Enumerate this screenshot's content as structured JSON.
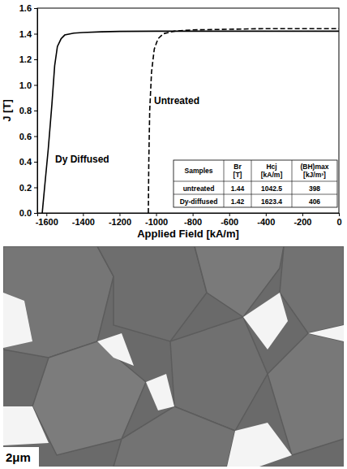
{
  "chart_data": {
    "type": "line",
    "x_label": "Applied Field [kA/m]",
    "y_label": "J [T]",
    "xlim": [
      -1650,
      0
    ],
    "ylim": [
      0,
      1.6
    ],
    "xticks": [
      -1600,
      -1400,
      -1200,
      -1000,
      -800,
      -600,
      -400,
      -200,
      0
    ],
    "yticks": [
      {
        "value": 0,
        "label": "0.0"
      },
      {
        "value": 0.2,
        "label": "0.2"
      },
      {
        "value": 0.4,
        "label": "0.4"
      },
      {
        "value": 0.6,
        "label": "0.6"
      },
      {
        "value": 0.8,
        "label": "0.8"
      },
      {
        "value": 1.0,
        "label": "1.0"
      },
      {
        "value": 1.2,
        "label": "1.2"
      },
      {
        "value": 1.4,
        "label": "1.4"
      },
      {
        "value": 1.6,
        "label": "1.6"
      }
    ],
    "grid": false,
    "series": [
      {
        "name": "Dy Diffused",
        "color": "#000000",
        "line_style": "solid",
        "x": [
          -1623,
          -1610,
          -1590,
          -1570,
          -1555,
          -1540,
          -1520,
          -1500,
          -1450,
          -1400,
          -1300,
          -1200,
          -1000,
          -800,
          -600,
          -400,
          -200,
          0
        ],
        "values": [
          0,
          0.2,
          0.5,
          0.85,
          1.15,
          1.3,
          1.36,
          1.39,
          1.405,
          1.41,
          1.415,
          1.418,
          1.42,
          1.42,
          1.42,
          1.42,
          1.42,
          1.42
        ]
      },
      {
        "name": "Untreated",
        "color": "#000000",
        "line_style": "dashed",
        "x": [
          -1042.5,
          -1040,
          -1035,
          -1025,
          -1010,
          -990,
          -960,
          -900,
          -800,
          -600,
          -400,
          -200,
          0
        ],
        "values": [
          0,
          0.4,
          0.8,
          1.1,
          1.28,
          1.36,
          1.4,
          1.42,
          1.43,
          1.435,
          1.44,
          1.44,
          1.44
        ]
      }
    ],
    "table": {
      "columns": [
        "Samples",
        "Br [T]",
        "Hcj [kA/m]",
        "(BH)max [kJ/m³]"
      ],
      "rows": [
        [
          "untreated",
          1.44,
          1042.5,
          398
        ],
        [
          "Dy-diffused",
          1.42,
          1623.4,
          406
        ]
      ]
    }
  },
  "micrograph": {
    "scale_bar_label": "2μm"
  }
}
